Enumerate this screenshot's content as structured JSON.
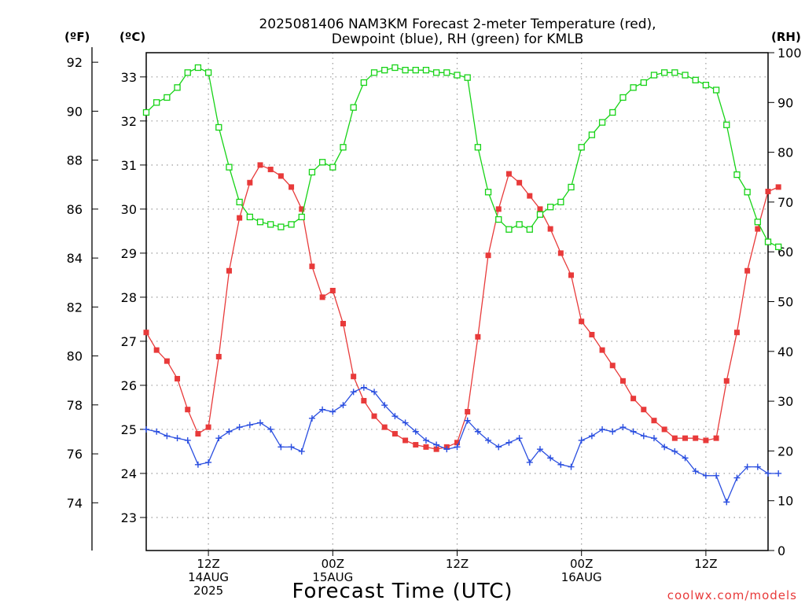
{
  "chart_data": {
    "type": "line",
    "title_line1": "2025081406 NAM3KM Forecast 2-meter Temperature (red),",
    "title_line2": "Dewpoint (blue), RH (green) for KMLB",
    "xlabel": "Forecast Time (UTC)",
    "credit": "coolwx.com/models",
    "units": {
      "fahrenheit": "(ºF)",
      "celsius": "(ºC)",
      "rh": "(RH)"
    },
    "celsius_axis": {
      "ylim": [
        22.25,
        33.55
      ],
      "ticks": [
        "23",
        "24",
        "25",
        "26",
        "27",
        "28",
        "29",
        "30",
        "31",
        "32",
        "33"
      ]
    },
    "fahrenheit_axis": {
      "ticks": [
        "74",
        "76",
        "78",
        "80",
        "82",
        "84",
        "86",
        "88",
        "90",
        "92"
      ]
    },
    "rh_axis": {
      "ylim": [
        0,
        100
      ],
      "ticks": [
        "0",
        "10",
        "20",
        "30",
        "40",
        "50",
        "60",
        "70",
        "80",
        "90",
        "100"
      ]
    },
    "x_hours_range": [
      0,
      60
    ],
    "x_ticks": [
      {
        "hour": 6,
        "lines": [
          "12Z",
          "14AUG",
          "2025"
        ]
      },
      {
        "hour": 18,
        "lines": [
          "00Z",
          "15AUG"
        ]
      },
      {
        "hour": 30,
        "lines": [
          "12Z"
        ]
      },
      {
        "hour": 42,
        "lines": [
          "00Z",
          "16AUG"
        ]
      },
      {
        "hour": 54,
        "lines": [
          "12Z"
        ]
      }
    ],
    "grid": true,
    "colors": {
      "temperature": "#e83a3a",
      "dewpoint": "#2b4fe0",
      "rh": "#17d317"
    },
    "series": [
      {
        "key": "temperature",
        "unit": "C",
        "marker": "filled-square",
        "values": [
          27.2,
          26.8,
          26.55,
          26.15,
          25.45,
          24.9,
          25.05,
          26.65,
          28.6,
          29.8,
          30.6,
          31.0,
          30.9,
          30.75,
          30.5,
          30.0,
          28.7,
          28.0,
          28.15,
          27.4,
          26.2,
          25.65,
          25.3,
          25.05,
          24.9,
          24.75,
          24.65,
          24.6,
          24.55,
          24.6,
          24.7,
          25.4,
          27.1,
          28.95,
          30.0,
          30.8,
          30.6,
          30.3,
          30.0,
          29.55,
          29.0,
          28.5,
          27.45,
          27.15,
          26.8,
          26.45,
          26.1,
          25.7,
          25.45,
          25.2,
          25.0,
          24.8,
          24.8,
          24.8,
          24.75,
          24.8,
          26.1,
          27.2,
          28.6,
          29.55,
          30.4,
          30.5
        ]
      },
      {
        "key": "dewpoint",
        "unit": "C",
        "marker": "plus",
        "values": [
          25.0,
          24.95,
          24.85,
          24.8,
          24.75,
          24.2,
          24.25,
          24.8,
          24.95,
          25.05,
          25.1,
          25.15,
          25.0,
          24.6,
          24.6,
          24.5,
          25.25,
          25.45,
          25.4,
          25.55,
          25.85,
          25.95,
          25.85,
          25.55,
          25.3,
          25.15,
          24.95,
          24.75,
          24.65,
          24.55,
          24.6,
          25.2,
          24.95,
          24.75,
          24.6,
          24.7,
          24.8,
          24.25,
          24.55,
          24.35,
          24.2,
          24.15,
          24.75,
          24.85,
          25.0,
          24.95,
          25.05,
          24.95,
          24.85,
          24.8,
          24.6,
          24.5,
          24.35,
          24.05,
          23.95,
          23.95,
          23.35,
          23.9,
          24.15,
          24.15,
          24.0,
          24.0
        ]
      },
      {
        "key": "rh",
        "unit": "%",
        "marker": "open-square",
        "values": [
          88,
          90,
          91,
          93,
          96,
          97,
          96,
          85,
          77,
          70,
          67,
          66,
          65.5,
          65,
          65.5,
          67,
          76,
          78,
          77,
          81,
          89,
          94,
          96,
          96.5,
          97,
          96.5,
          96.5,
          96.5,
          96,
          96,
          95.5,
          95,
          81,
          72,
          66.5,
          64.5,
          65.5,
          64.5,
          67.5,
          69,
          70,
          73,
          81,
          83.5,
          86,
          88,
          91,
          93,
          94,
          95.5,
          96,
          96,
          95.5,
          94.5,
          93.5,
          92.5,
          85.5,
          75.5,
          72,
          66,
          62,
          61
        ]
      }
    ]
  }
}
